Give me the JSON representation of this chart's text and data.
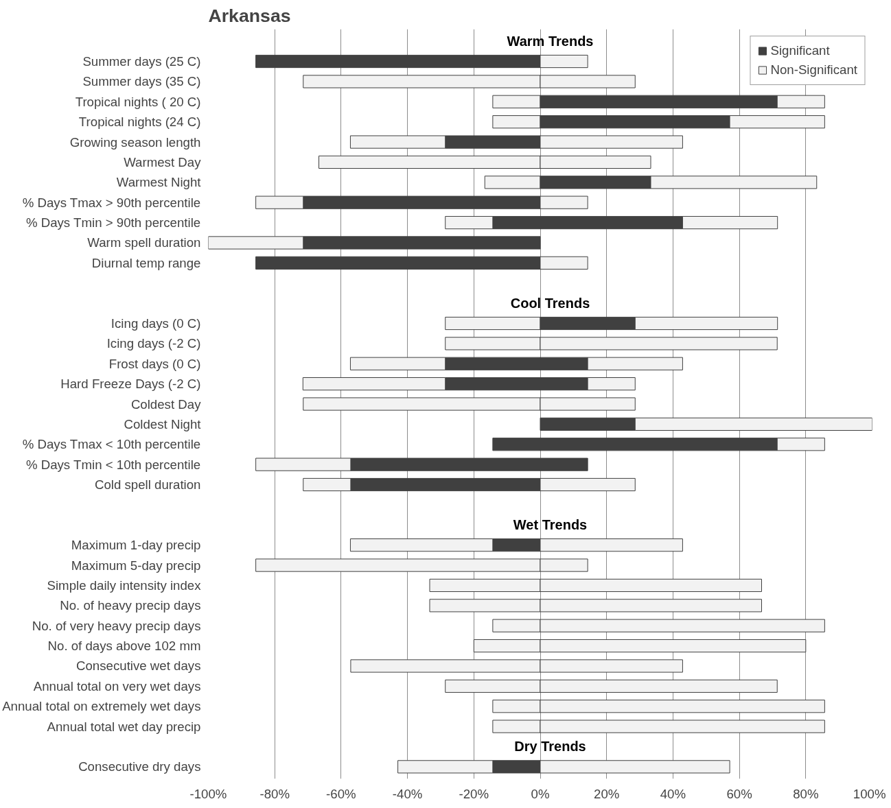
{
  "chart_data": {
    "type": "bar",
    "orientation": "horizontal",
    "stacked": true,
    "title": "Arkansas",
    "annotations": [
      "Warm Trends",
      "Cool Trends",
      "Wet Trends",
      "Dry Trends"
    ],
    "categories": [
      null,
      "Summer days (25 C)",
      "Summer days (35 C)",
      "Tropical nights ( 20 C)",
      "Tropical nights (24 C)",
      "Growing season length",
      "Warmest Day",
      "Warmest Night",
      "% Days Tmax > 90th percentile",
      "% Days Tmin > 90th percentile",
      "Warm spell duration",
      "Diurnal temp range",
      null,
      null,
      "Icing days (0 C)",
      "Icing days (-2 C)",
      "Frost days (0 C)",
      "Hard Freeze Days (-2 C)",
      "Coldest Day",
      "Coldest Night",
      "% Days Tmax < 10th percentile",
      "% Days Tmin < 10th percentile",
      "Cold spell duration",
      null,
      null,
      "Maximum 1-day precip",
      "Maximum 5-day precip",
      "Simple daily intensity index",
      "No. of heavy precip days",
      "No. of very heavy precip days",
      "No. of days above 102 mm",
      "Consecutive wet days",
      "Annual total on very wet days",
      "Annual total on extremely wet days",
      "Annual total wet day precip",
      null,
      "Consecutive dry days"
    ],
    "series": [
      {
        "name": "Significant",
        "color": "#404040",
        "values": [
          null,
          -85.7,
          null,
          null,
          null,
          -28.6,
          null,
          null,
          -71.4,
          -14.3,
          -71.4,
          -85.7,
          null,
          null,
          null,
          null,
          -28.6,
          -28.6,
          null,
          null,
          -14.3,
          -57.1,
          -57.1,
          null,
          null,
          -14.3,
          null,
          null,
          null,
          null,
          null,
          null,
          null,
          null,
          null,
          null,
          -14.3
        ]
      },
      {
        "name": "Non-Significant",
        "color": "#f2f2f2",
        "values": [
          null,
          null,
          -71.4,
          -14.3,
          -14.3,
          -28.6,
          -66.7,
          -16.7,
          -14.3,
          -14.3,
          -28.6,
          null,
          null,
          null,
          -28.6,
          -28.6,
          -28.6,
          -42.9,
          -71.4,
          null,
          null,
          -28.6,
          -14.3,
          null,
          null,
          -42.9,
          -85.7,
          -33.3,
          -33.3,
          -14.3,
          -20,
          -57.1,
          -28.6,
          -14.3,
          -14.3,
          null,
          -28.6
        ]
      },
      {
        "color": "#404040",
        "values": [
          null,
          null,
          null,
          71.4,
          57.1,
          null,
          null,
          33.3,
          null,
          42.9,
          null,
          null,
          null,
          null,
          28.6,
          null,
          14.3,
          14.3,
          null,
          28.6,
          71.4,
          14.3,
          null,
          null,
          null,
          null,
          null,
          null,
          null,
          null,
          null,
          null,
          null,
          null,
          null,
          null,
          null
        ]
      },
      {
        "color": "#f2f2f2",
        "values": [
          null,
          14.3,
          28.6,
          14.3,
          28.6,
          42.9,
          33.3,
          50,
          14.3,
          28.6,
          null,
          14.3,
          null,
          null,
          42.9,
          71.4,
          28.6,
          14.3,
          28.6,
          71.4,
          14.3,
          null,
          28.6,
          null,
          null,
          42.9,
          14.3,
          66.7,
          66.7,
          85.7,
          80,
          42.9,
          71.4,
          85.7,
          85.7,
          null,
          57.1
        ]
      }
    ],
    "xlim": [
      -100,
      100
    ],
    "xticks": [
      {
        "value": -100,
        "label": "-100%"
      },
      {
        "value": -80,
        "label": "-80%"
      },
      {
        "value": -60,
        "label": "-60%"
      },
      {
        "value": -40,
        "label": "-40%"
      },
      {
        "value": -20,
        "label": "-20%"
      },
      {
        "value": 0,
        "label": "0%"
      },
      {
        "value": 20,
        "label": "20%"
      },
      {
        "value": 40,
        "label": "40%"
      },
      {
        "value": 60,
        "label": "60%"
      },
      {
        "value": 80,
        "label": "80%"
      },
      {
        "value": 100,
        "label": "100%"
      }
    ],
    "grid": "x",
    "legend": "top right"
  }
}
